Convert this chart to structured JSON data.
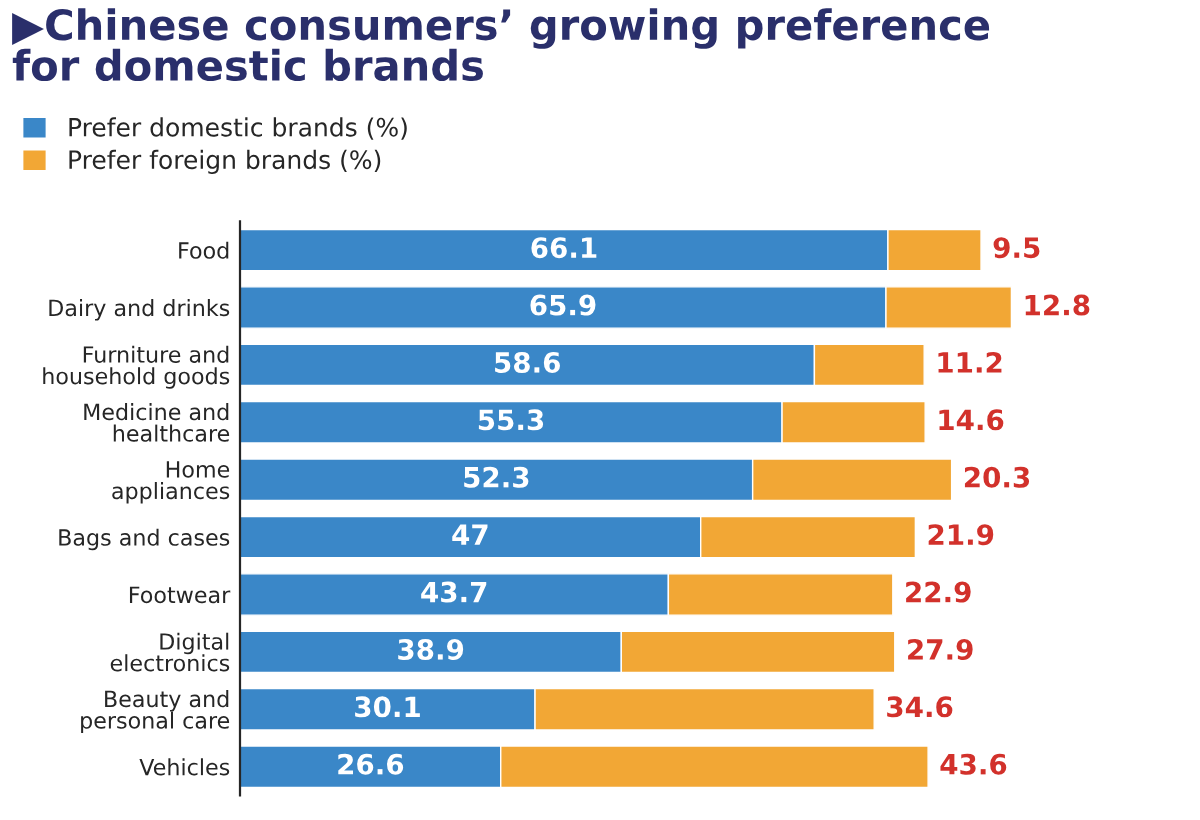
{
  "chart_data": {
    "type": "bar",
    "stacked": true,
    "orientation": "horizontal",
    "title": "▶Chinese consumers’ growing preference\nfor domestic brands",
    "categories": [
      "Food",
      "Dairy and drinks",
      "Furniture and\nhousehold goods",
      "Medicine and\nhealthcare",
      "Home\nappliances",
      "Bags and cases",
      "Footwear",
      "Digital\nelectronics",
      "Beauty and\npersonal care",
      "Vehicles"
    ],
    "series": [
      {
        "name": "Prefer domestic brands (%)",
        "color": "#3a87c8",
        "values": [
          66.1,
          65.9,
          58.6,
          55.3,
          52.3,
          47,
          43.7,
          38.9,
          30.1,
          26.6
        ]
      },
      {
        "name": "Prefer foreign brands (%)",
        "color": "#f2a735",
        "values": [
          9.5,
          12.8,
          11.2,
          14.6,
          20.3,
          21.9,
          22.9,
          27.9,
          34.6,
          43.6
        ]
      }
    ],
    "data_labels": true,
    "legend": "top left"
  }
}
